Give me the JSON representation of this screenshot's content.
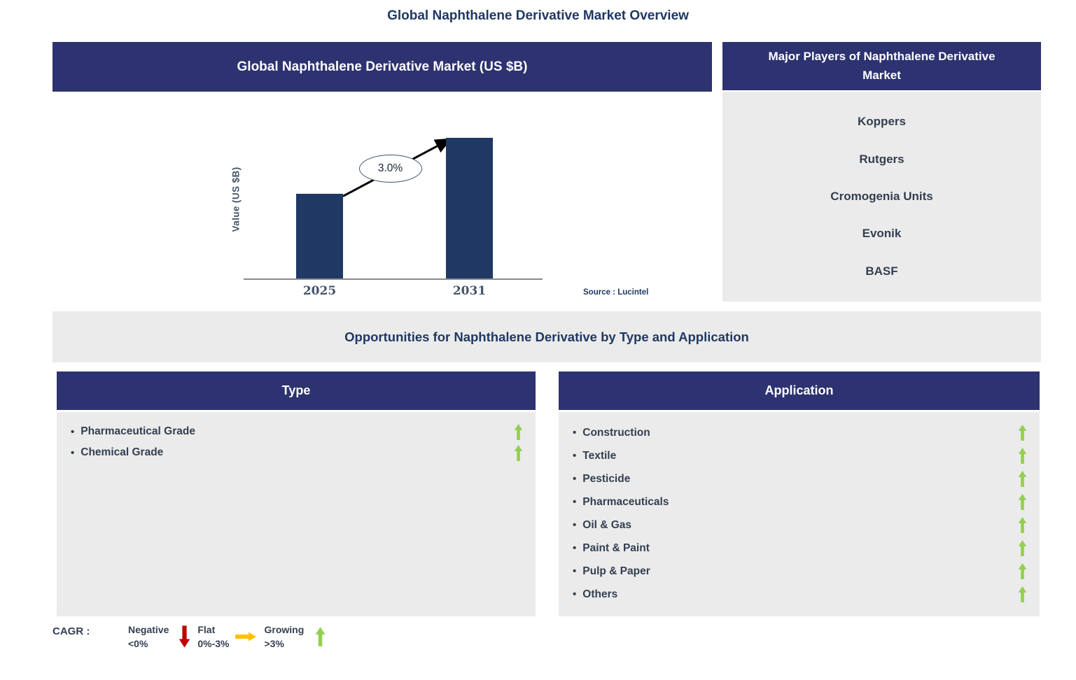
{
  "page_title": "Global Naphthalene Derivative Market Overview",
  "market_panel": {
    "header": "Global Naphthalene Derivative Market (US $B)",
    "source": "Source : Lucintel"
  },
  "chart_data": {
    "type": "bar",
    "title": "Global Naphthalene Derivative Market (US $B)",
    "categories": [
      "2025",
      "2031"
    ],
    "values": [
      0.6,
      1.0
    ],
    "value_scale": "relative bar heights; no numeric y-axis labels shown in chart",
    "ylabel": "Value (US $B)",
    "xlabel": "",
    "annotation": "3.0%",
    "grid": false,
    "legend": false,
    "bar_color": "#1F3864"
  },
  "players_panel": {
    "header": "Major Players of Naphthalene Derivative Market",
    "players": [
      "Koppers",
      "Rutgers",
      "Cromogenia Units",
      "Evonik",
      "BASF"
    ]
  },
  "opportunities": {
    "band_title": "Opportunities for Naphthalene Derivative by Type and Application",
    "type_panel": {
      "header": "Type",
      "items": [
        {
          "label": "Pharmaceutical Grade",
          "trend": "growing"
        },
        {
          "label": "Chemical Grade",
          "trend": "growing"
        }
      ]
    },
    "application_panel": {
      "header": "Application",
      "items": [
        {
          "label": "Construction",
          "trend": "growing"
        },
        {
          "label": "Textile",
          "trend": "growing"
        },
        {
          "label": "Pesticide",
          "trend": "growing"
        },
        {
          "label": "Pharmaceuticals",
          "trend": "growing"
        },
        {
          "label": "Oil & Gas",
          "trend": "growing"
        },
        {
          "label": "Paint & Paint",
          "trend": "growing"
        },
        {
          "label": "Pulp & Paper",
          "trend": "growing"
        },
        {
          "label": "Others",
          "trend": "growing"
        }
      ]
    }
  },
  "cagr_legend": {
    "label": "CAGR :",
    "entries": [
      {
        "name": "Negative",
        "range": "<0%",
        "arrow": "down",
        "color": "#C00000"
      },
      {
        "name": "Flat",
        "range": "0%-3%",
        "arrow": "right",
        "color": "#FFC000"
      },
      {
        "name": "Growing",
        "range": ">3%",
        "arrow": "up",
        "color": "#92D050"
      }
    ]
  },
  "colors": {
    "header_bg": "#2D3270",
    "panel_bg": "#EBEBEB",
    "bar": "#1F3864",
    "navy_text": "#1F3864",
    "item_text": "#333F50",
    "axis_text": "#44546A",
    "growing": "#92D050",
    "negative": "#C00000",
    "flat": "#FFC000"
  }
}
